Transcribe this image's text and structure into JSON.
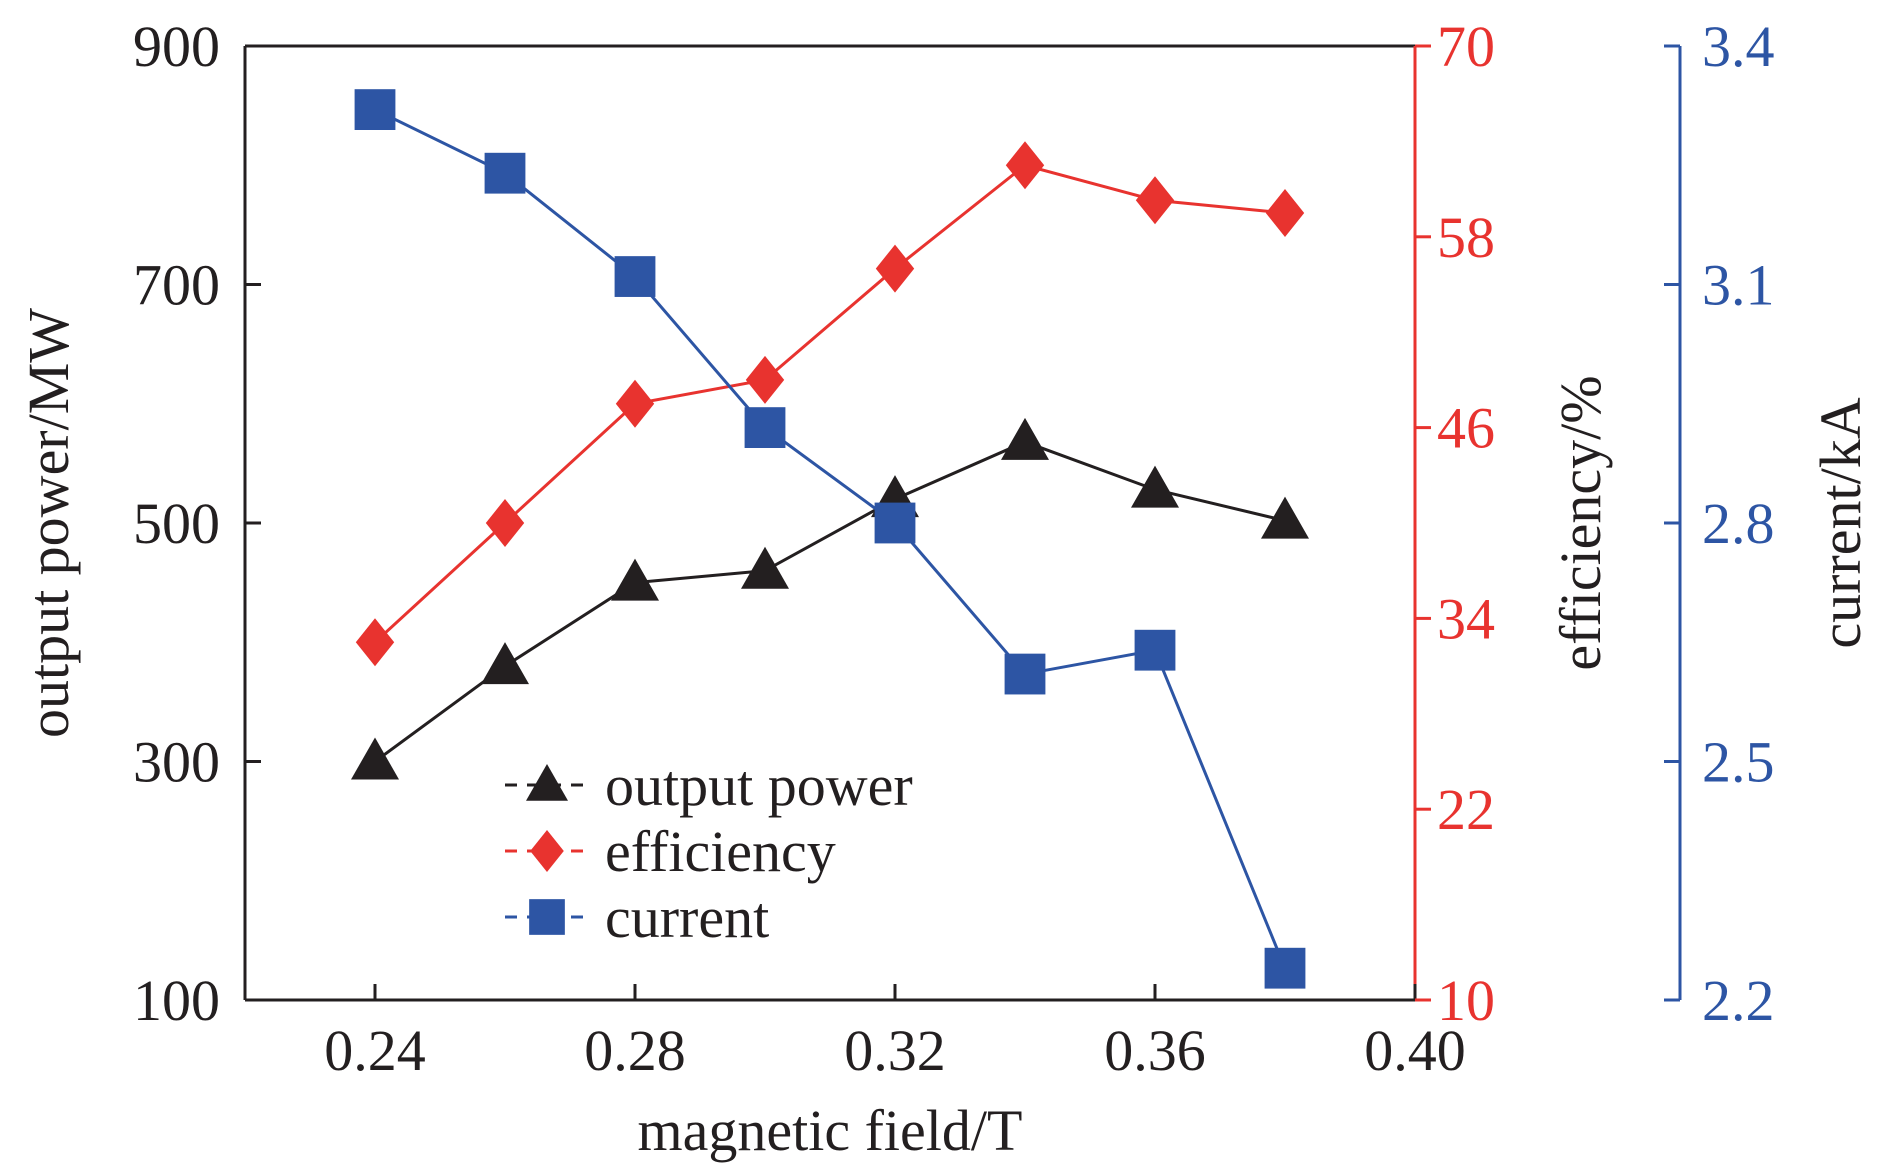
{
  "chart_data": {
    "type": "line",
    "xlabel": "magnetic field/T",
    "xlim": [
      0.22,
      0.4
    ],
    "x_ticks": [
      "0.24",
      "0.28",
      "0.32",
      "0.36",
      "0.40"
    ],
    "x": [
      0.24,
      0.26,
      0.28,
      0.3,
      0.32,
      0.34,
      0.36,
      0.38
    ],
    "axes": {
      "left": {
        "label": "output power/MW",
        "ylim": [
          100,
          900
        ],
        "ticks": [
          "100",
          "300",
          "500",
          "700",
          "900"
        ],
        "color": "#231f20"
      },
      "right1": {
        "label": "efficiency/%",
        "ylim": [
          10,
          70
        ],
        "ticks": [
          "10",
          "22",
          "34",
          "46",
          "58",
          "70"
        ],
        "color": "#e8332f"
      },
      "right2": {
        "label": "current/kA",
        "ylim": [
          2.2,
          3.4
        ],
        "ticks": [
          "2.2",
          "2.5",
          "2.8",
          "3.1",
          "3.4"
        ],
        "color": "#2d55a4"
      }
    },
    "series": [
      {
        "name": "output power",
        "axis": "left",
        "marker": "triangle",
        "color": "#231f20",
        "values": [
          300,
          380,
          450,
          460,
          520,
          568,
          528,
          502
        ]
      },
      {
        "name": "efficiency",
        "axis": "right1",
        "marker": "diamond",
        "color": "#e8332f",
        "values": [
          32.5,
          40.0,
          47.5,
          49.0,
          56.0,
          62.5,
          60.3,
          59.5
        ]
      },
      {
        "name": "current",
        "axis": "right2",
        "marker": "square",
        "color": "#2d55a4",
        "values": [
          3.32,
          3.24,
          3.11,
          2.92,
          2.8,
          2.61,
          2.64,
          2.24
        ]
      }
    ],
    "legend": {
      "position": "bottom-left"
    },
    "grid": false
  }
}
